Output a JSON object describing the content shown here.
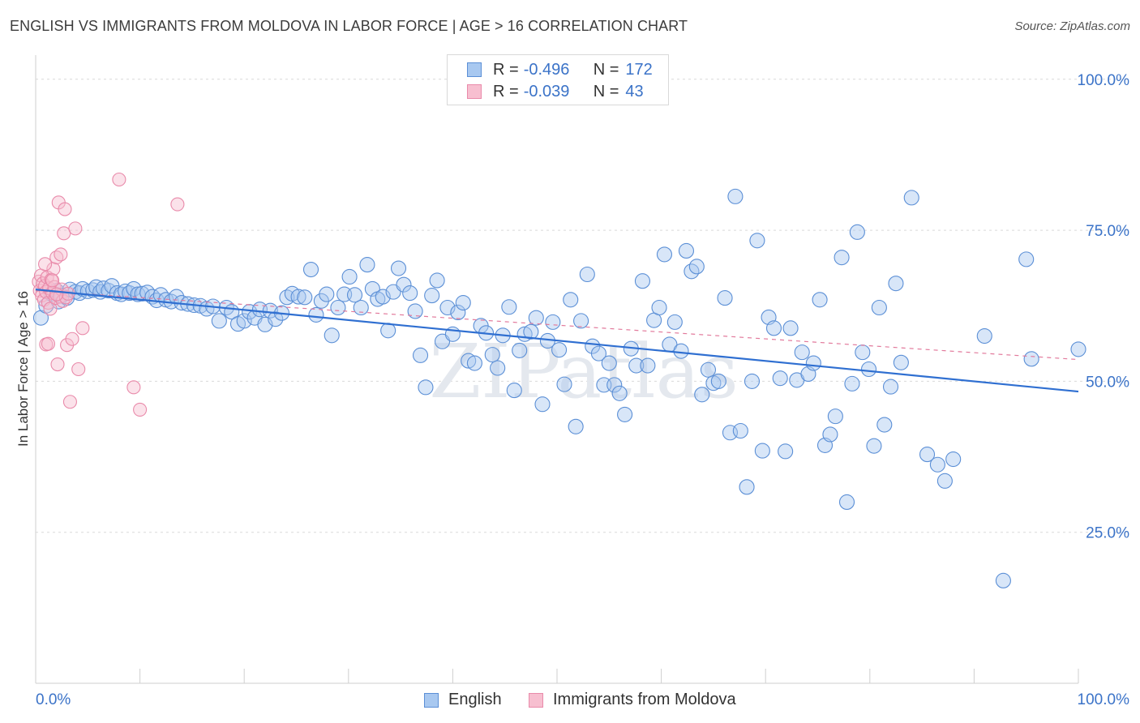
{
  "title": "ENGLISH VS IMMIGRANTS FROM MOLDOVA IN LABOR FORCE | AGE > 16 CORRELATION CHART",
  "source": "Source: ZipAtlas.com",
  "watermark": "ZIPatlas",
  "colors": {
    "english_fill": "#a8c8f0",
    "english_stroke": "#5b8fd6",
    "moldova_fill": "#f7bfd0",
    "moldova_stroke": "#e98aaa",
    "trend_english": "#2f6fd1",
    "trend_moldova": "#e27a9c",
    "axis_label": "#3b73c8",
    "grid": "#d9d9d9"
  },
  "legend": {
    "rows": [
      {
        "r_label": "R = ",
        "r_value": "-0.496",
        "n_label": "N = ",
        "n_value": "172"
      },
      {
        "r_label": "R = ",
        "r_value": "-0.039",
        "n_label": "N = ",
        "n_value": "43"
      }
    ]
  },
  "chart_data": {
    "type": "scatter",
    "title": "ENGLISH VS IMMIGRANTS FROM MOLDOVA IN LABOR FORCE | AGE > 16 CORRELATION CHART",
    "xlabel": "",
    "ylabel": "In Labor Force | Age > 16",
    "xlim": [
      0,
      100
    ],
    "ylim": [
      0,
      104
    ],
    "x_tick_labels": [
      "0.0%",
      "100.0%"
    ],
    "y_ticks": [
      25,
      50,
      75,
      100
    ],
    "y_tick_labels": [
      "25.0%",
      "50.0%",
      "75.0%",
      "100.0%"
    ],
    "grid": true,
    "legend_position": "top-center",
    "series": [
      {
        "name": "English",
        "R": -0.496,
        "N": 172,
        "trend": [
          [
            0,
            65.2
          ],
          [
            100,
            48.3
          ]
        ],
        "points": [
          [
            0.5,
            60.5
          ],
          [
            1.0,
            62.5
          ],
          [
            1.5,
            64.5
          ],
          [
            2.0,
            65.0
          ],
          [
            2.2,
            63.2
          ],
          [
            2.5,
            64.2
          ],
          [
            3.0,
            63.8
          ],
          [
            3.3,
            65.2
          ],
          [
            3.8,
            64.8
          ],
          [
            4.2,
            64.6
          ],
          [
            4.5,
            65.3
          ],
          [
            5.0,
            64.9
          ],
          [
            5.5,
            65.1
          ],
          [
            5.8,
            65.6
          ],
          [
            6.2,
            64.8
          ],
          [
            6.5,
            65.4
          ],
          [
            7.0,
            65.0
          ],
          [
            7.3,
            65.8
          ],
          [
            7.8,
            64.6
          ],
          [
            8.2,
            64.4
          ],
          [
            8.6,
            64.9
          ],
          [
            9.0,
            64.6
          ],
          [
            9.4,
            65.3
          ],
          [
            9.8,
            64.4
          ],
          [
            10.2,
            64.5
          ],
          [
            10.7,
            64.7
          ],
          [
            11.2,
            64.0
          ],
          [
            11.6,
            63.4
          ],
          [
            12.0,
            64.3
          ],
          [
            12.5,
            63.5
          ],
          [
            13.0,
            63.2
          ],
          [
            13.5,
            64.0
          ],
          [
            14.0,
            63.0
          ],
          [
            14.6,
            62.8
          ],
          [
            15.2,
            62.6
          ],
          [
            15.8,
            62.5
          ],
          [
            16.4,
            62.0
          ],
          [
            17.0,
            62.4
          ],
          [
            17.6,
            60.0
          ],
          [
            18.3,
            62.2
          ],
          [
            18.8,
            61.5
          ],
          [
            19.4,
            59.5
          ],
          [
            20.0,
            60.0
          ],
          [
            20.5,
            61.5
          ],
          [
            21.0,
            60.5
          ],
          [
            21.5,
            61.9
          ],
          [
            22.0,
            59.4
          ],
          [
            22.5,
            61.7
          ],
          [
            23.0,
            60.3
          ],
          [
            23.6,
            61.3
          ],
          [
            24.1,
            63.9
          ],
          [
            24.6,
            64.5
          ],
          [
            25.2,
            64.0
          ],
          [
            25.8,
            63.9
          ],
          [
            26.4,
            68.5
          ],
          [
            26.9,
            61.0
          ],
          [
            27.4,
            63.3
          ],
          [
            27.9,
            64.4
          ],
          [
            28.4,
            57.6
          ],
          [
            29.0,
            62.2
          ],
          [
            29.6,
            64.4
          ],
          [
            30.1,
            67.3
          ],
          [
            30.6,
            64.3
          ],
          [
            31.2,
            62.2
          ],
          [
            31.8,
            69.3
          ],
          [
            32.3,
            65.3
          ],
          [
            32.8,
            63.6
          ],
          [
            33.3,
            64.0
          ],
          [
            33.8,
            58.4
          ],
          [
            34.3,
            64.8
          ],
          [
            34.8,
            68.7
          ],
          [
            35.3,
            66.0
          ],
          [
            35.9,
            64.6
          ],
          [
            36.4,
            61.6
          ],
          [
            36.9,
            54.3
          ],
          [
            37.4,
            49.0
          ],
          [
            38.0,
            64.2
          ],
          [
            38.5,
            66.7
          ],
          [
            39.0,
            56.6
          ],
          [
            39.5,
            62.2
          ],
          [
            40.0,
            57.8
          ],
          [
            40.5,
            61.4
          ],
          [
            41.0,
            63.0
          ],
          [
            41.5,
            53.4
          ],
          [
            42.1,
            53.0
          ],
          [
            42.7,
            59.2
          ],
          [
            43.2,
            58.0
          ],
          [
            43.8,
            54.4
          ],
          [
            44.3,
            52.2
          ],
          [
            44.8,
            57.6
          ],
          [
            45.4,
            62.3
          ],
          [
            45.9,
            48.5
          ],
          [
            46.4,
            55.1
          ],
          [
            46.9,
            57.8
          ],
          [
            47.5,
            58.2
          ],
          [
            48.0,
            60.5
          ],
          [
            48.6,
            46.2
          ],
          [
            49.1,
            56.7
          ],
          [
            49.6,
            59.8
          ],
          [
            50.2,
            55.2
          ],
          [
            50.7,
            49.5
          ],
          [
            51.3,
            63.5
          ],
          [
            51.8,
            42.5
          ],
          [
            52.3,
            60.0
          ],
          [
            52.9,
            67.7
          ],
          [
            53.4,
            55.8
          ],
          [
            54.0,
            54.6
          ],
          [
            54.5,
            49.4
          ],
          [
            55.0,
            53.0
          ],
          [
            55.5,
            49.4
          ],
          [
            56.0,
            48.0
          ],
          [
            56.5,
            44.5
          ],
          [
            57.1,
            55.4
          ],
          [
            57.6,
            52.6
          ],
          [
            58.2,
            66.6
          ],
          [
            58.7,
            52.6
          ],
          [
            59.3,
            60.1
          ],
          [
            59.8,
            62.2
          ],
          [
            60.3,
            71.0
          ],
          [
            60.8,
            56.1
          ],
          [
            61.3,
            59.8
          ],
          [
            61.9,
            55.0
          ],
          [
            62.4,
            71.6
          ],
          [
            62.9,
            68.2
          ],
          [
            63.4,
            69.0
          ],
          [
            63.9,
            47.8
          ],
          [
            64.5,
            51.9
          ],
          [
            65.0,
            49.7
          ],
          [
            65.5,
            50.0
          ],
          [
            66.1,
            63.8
          ],
          [
            66.6,
            41.5
          ],
          [
            67.1,
            80.6
          ],
          [
            67.6,
            41.8
          ],
          [
            68.2,
            32.5
          ],
          [
            68.7,
            50.0
          ],
          [
            69.2,
            73.3
          ],
          [
            69.7,
            38.5
          ],
          [
            70.3,
            60.6
          ],
          [
            70.8,
            58.8
          ],
          [
            71.4,
            50.5
          ],
          [
            71.9,
            38.4
          ],
          [
            72.4,
            58.8
          ],
          [
            73.0,
            50.2
          ],
          [
            73.5,
            54.8
          ],
          [
            74.1,
            51.2
          ],
          [
            74.6,
            53.0
          ],
          [
            75.2,
            63.5
          ],
          [
            75.7,
            39.4
          ],
          [
            76.2,
            41.2
          ],
          [
            76.7,
            44.2
          ],
          [
            77.3,
            70.5
          ],
          [
            77.8,
            30.0
          ],
          [
            78.3,
            49.6
          ],
          [
            78.8,
            74.7
          ],
          [
            79.3,
            54.8
          ],
          [
            79.9,
            52.0
          ],
          [
            80.4,
            39.3
          ],
          [
            80.9,
            62.2
          ],
          [
            81.4,
            42.8
          ],
          [
            82.0,
            49.1
          ],
          [
            82.5,
            66.2
          ],
          [
            83.0,
            53.1
          ],
          [
            84.0,
            80.4
          ],
          [
            85.5,
            37.9
          ],
          [
            86.5,
            36.2
          ],
          [
            87.2,
            33.5
          ],
          [
            88.0,
            37.1
          ],
          [
            91.0,
            57.5
          ],
          [
            92.8,
            17.0
          ],
          [
            95.0,
            70.2
          ],
          [
            95.5,
            53.7
          ],
          [
            100.0,
            55.3
          ]
        ]
      },
      {
        "name": "Immigrants from Moldova",
        "R": -0.039,
        "N": 43,
        "trend": [
          [
            0,
            65.0
          ],
          [
            100,
            53.6
          ]
        ],
        "points": [
          [
            0.3,
            66.5
          ],
          [
            0.4,
            65.0
          ],
          [
            0.5,
            67.5
          ],
          [
            0.6,
            64.2
          ],
          [
            0.7,
            66.2
          ],
          [
            0.8,
            63.5
          ],
          [
            0.9,
            65.8
          ],
          [
            1.0,
            64.8
          ],
          [
            1.1,
            67.2
          ],
          [
            1.2,
            63.0
          ],
          [
            1.3,
            65.4
          ],
          [
            1.4,
            62.0
          ],
          [
            1.5,
            66.8
          ],
          [
            1.6,
            64.6
          ],
          [
            1.7,
            68.6
          ],
          [
            1.8,
            65.6
          ],
          [
            1.9,
            63.8
          ],
          [
            2.0,
            70.5
          ],
          [
            2.1,
            52.8
          ],
          [
            2.2,
            79.6
          ],
          [
            2.3,
            64.0
          ],
          [
            2.4,
            71.0
          ],
          [
            2.5,
            65.2
          ],
          [
            2.6,
            63.3
          ],
          [
            2.7,
            74.5
          ],
          [
            2.8,
            78.5
          ],
          [
            2.9,
            63.9
          ],
          [
            3.0,
            56.0
          ],
          [
            3.1,
            64.5
          ],
          [
            3.3,
            46.6
          ],
          [
            3.5,
            57.0
          ],
          [
            3.8,
            75.3
          ],
          [
            4.1,
            52.0
          ],
          [
            4.5,
            58.8
          ],
          [
            8.0,
            83.4
          ],
          [
            9.4,
            49.0
          ],
          [
            10.0,
            45.3
          ],
          [
            13.6,
            79.3
          ],
          [
            1.0,
            56.1
          ],
          [
            1.2,
            56.2
          ],
          [
            0.9,
            69.4
          ],
          [
            1.6,
            66.7
          ],
          [
            2.0,
            64.4
          ]
        ]
      }
    ]
  },
  "bottom_legend": [
    "English",
    "Immigrants from Moldova"
  ]
}
